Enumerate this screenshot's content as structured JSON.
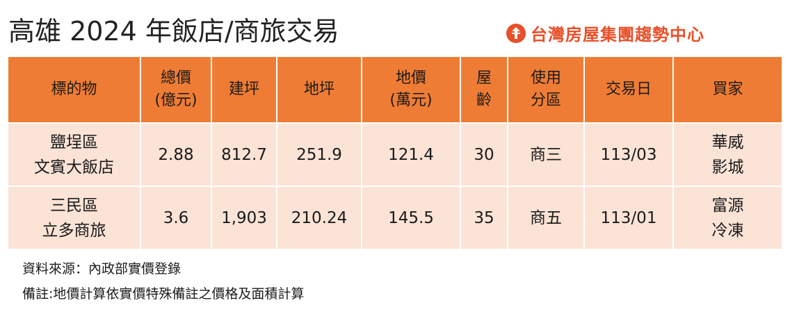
{
  "title": "高雄 2024 年飯店/商旅交易",
  "brand": {
    "name": "台灣房屋集團趨勢中心",
    "logo_icon": "taiwan-realty-logo-icon",
    "color": "#e8502a"
  },
  "colors": {
    "header_bg": "#ef7c34",
    "row_bg": "#fbe3d6"
  },
  "table": {
    "headers": [
      [
        "標的物"
      ],
      [
        "總價",
        "(億元)"
      ],
      [
        "建坪"
      ],
      [
        "地坪"
      ],
      [
        "地價",
        "(萬元)"
      ],
      [
        "屋",
        "齡"
      ],
      [
        "使用",
        "分區"
      ],
      [
        "交易日"
      ],
      [
        "買家"
      ]
    ],
    "rows": [
      [
        [
          "鹽埕區",
          "文賓大飯店"
        ],
        [
          "2.88"
        ],
        [
          "812.7"
        ],
        [
          "251.9"
        ],
        [
          "121.4"
        ],
        [
          "30"
        ],
        [
          "商三"
        ],
        [
          "113/03"
        ],
        [
          "華威",
          "影城"
        ]
      ],
      [
        [
          "三民區",
          "立多商旅"
        ],
        [
          "3.6"
        ],
        [
          "1,903"
        ],
        [
          "210.24"
        ],
        [
          "145.5"
        ],
        [
          "35"
        ],
        [
          "商五"
        ],
        [
          "113/01"
        ],
        [
          "富源",
          "冷凍"
        ]
      ]
    ]
  },
  "footer": {
    "source": "資料來源：內政部實價登錄",
    "note": "備註:地價計算依實價特殊備註之價格及面積計算"
  }
}
